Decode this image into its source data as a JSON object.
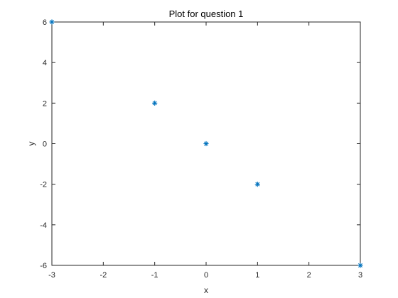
{
  "chart_data": {
    "type": "scatter",
    "title": "Plot for question 1",
    "xlabel": "x",
    "ylabel": "y",
    "xlim": [
      -3,
      3
    ],
    "ylim": [
      -6,
      6
    ],
    "xticks": [
      -3,
      -2,
      -1,
      0,
      1,
      2,
      3
    ],
    "yticks": [
      -6,
      -4,
      -2,
      0,
      2,
      4,
      6
    ],
    "xtick_labels": [
      "-3",
      "-2",
      "-1",
      "0",
      "1",
      "2",
      "3"
    ],
    "ytick_labels": [
      "-6",
      "-4",
      "-2",
      "0",
      "2",
      "4",
      "6"
    ],
    "grid": false,
    "box": true,
    "marker": "asterisk",
    "series": [
      {
        "x": [
          -3,
          -1,
          0,
          1,
          3
        ],
        "y": [
          6,
          2,
          0,
          -2,
          -6
        ],
        "color": "#0072BD"
      }
    ]
  },
  "colors": {
    "axis": "#262626",
    "background": "#ffffff",
    "marker": "#0072BD"
  }
}
